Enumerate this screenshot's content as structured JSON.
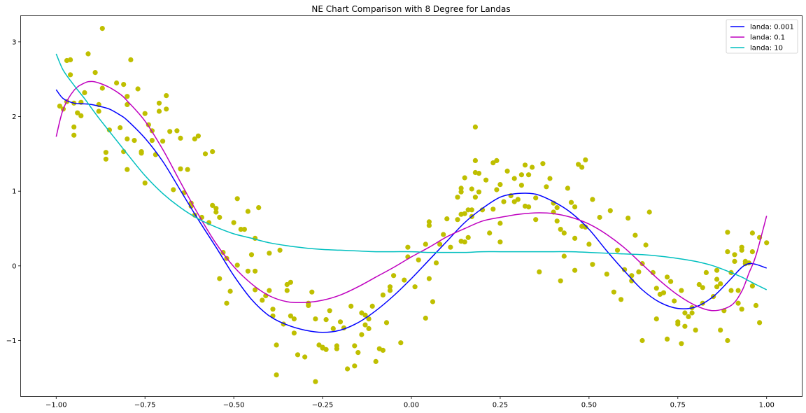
{
  "chart_data": {
    "type": "scatter",
    "title": "NE Chart Comparison with 8 Degree for Landas",
    "xlabel": "",
    "ylabel": "",
    "xlim": [
      -1.1,
      1.1
    ],
    "ylim": [
      -1.75,
      3.35
    ],
    "x_ticks": [
      -1.0,
      -0.75,
      -0.5,
      -0.25,
      0.0,
      0.25,
      0.5,
      0.75,
      1.0
    ],
    "x_tick_labels": [
      "−1.00",
      "−0.75",
      "−0.50",
      "−0.25",
      "0.00",
      "0.25",
      "0.50",
      "0.75",
      "1.00"
    ],
    "y_ticks": [
      -1,
      0,
      1,
      2,
      3
    ],
    "y_tick_labels": [
      "−1",
      "0",
      "1",
      "2",
      "3"
    ],
    "grid": false,
    "legend_position": "top-right",
    "scatter_color": "#bfbf00",
    "points": [
      [
        -0.99,
        2.14
      ],
      [
        -0.98,
        2.1
      ],
      [
        -0.97,
        2.75
      ],
      [
        -0.96,
        2.76
      ],
      [
        -0.96,
        2.56
      ],
      [
        -0.97,
        2.2
      ],
      [
        -0.95,
        1.86
      ],
      [
        -0.95,
        1.75
      ],
      [
        -0.95,
        2.18
      ],
      [
        -0.94,
        2.05
      ],
      [
        -0.93,
        2.01
      ],
      [
        -0.93,
        2.19
      ],
      [
        -0.92,
        2.32
      ],
      [
        -0.91,
        2.84
      ],
      [
        -0.89,
        2.59
      ],
      [
        -0.88,
        2.07
      ],
      [
        -0.88,
        2.16
      ],
      [
        -0.87,
        3.18
      ],
      [
        -0.87,
        2.38
      ],
      [
        -0.86,
        1.52
      ],
      [
        -0.86,
        1.43
      ],
      [
        -0.85,
        1.82
      ],
      [
        -0.83,
        2.45
      ],
      [
        -0.82,
        1.85
      ],
      [
        -0.81,
        1.53
      ],
      [
        -0.81,
        2.43
      ],
      [
        -0.8,
        2.27
      ],
      [
        -0.8,
        2.16
      ],
      [
        -0.8,
        1.7
      ],
      [
        -0.8,
        1.29
      ],
      [
        -0.79,
        2.76
      ],
      [
        -0.78,
        1.68
      ],
      [
        -0.77,
        2.37
      ],
      [
        -0.76,
        1.53
      ],
      [
        -0.76,
        1.51
      ],
      [
        -0.75,
        1.11
      ],
      [
        -0.75,
        2.04
      ],
      [
        -0.74,
        1.89
      ],
      [
        -0.73,
        1.81
      ],
      [
        -0.73,
        1.68
      ],
      [
        -0.72,
        1.49
      ],
      [
        -0.71,
        2.18
      ],
      [
        -0.71,
        2.07
      ],
      [
        -0.7,
        1.67
      ],
      [
        -0.69,
        2.28
      ],
      [
        -0.69,
        2.1
      ],
      [
        -0.68,
        1.8
      ],
      [
        -0.67,
        1.02
      ],
      [
        -0.66,
        1.81
      ],
      [
        -0.65,
        1.71
      ],
      [
        -0.65,
        1.3
      ],
      [
        -0.64,
        0.98
      ],
      [
        -0.63,
        1.29
      ],
      [
        -0.62,
        0.84
      ],
      [
        -0.62,
        0.8
      ],
      [
        -0.61,
        0.68
      ],
      [
        -0.61,
        1.7
      ],
      [
        -0.6,
        1.74
      ],
      [
        -0.59,
        0.65
      ],
      [
        -0.58,
        1.5
      ],
      [
        -0.57,
        0.58
      ],
      [
        -0.56,
        0.81
      ],
      [
        -0.56,
        1.53
      ],
      [
        -0.55,
        0.77
      ],
      [
        -0.55,
        0.72
      ],
      [
        -0.54,
        -0.17
      ],
      [
        -0.54,
        0.65
      ],
      [
        -0.53,
        0.18
      ],
      [
        -0.52,
        0.1
      ],
      [
        -0.52,
        -0.5
      ],
      [
        -0.51,
        -0.34
      ],
      [
        -0.5,
        0.58
      ],
      [
        -0.49,
        0.01
      ],
      [
        -0.49,
        0.9
      ],
      [
        -0.48,
        0.49
      ],
      [
        -0.47,
        0.49
      ],
      [
        -0.46,
        0.73
      ],
      [
        -0.46,
        -0.07
      ],
      [
        -0.45,
        0.15
      ],
      [
        -0.44,
        -0.07
      ],
      [
        -0.44,
        0.37
      ],
      [
        -0.44,
        -0.32
      ],
      [
        -0.43,
        0.78
      ],
      [
        -0.42,
        -0.46
      ],
      [
        -0.41,
        -0.4
      ],
      [
        -0.4,
        0.17
      ],
      [
        -0.4,
        -0.33
      ],
      [
        -0.39,
        -0.58
      ],
      [
        -0.39,
        -0.67
      ],
      [
        -0.38,
        -1.06
      ],
      [
        -0.38,
        -1.46
      ],
      [
        -0.37,
        0.21
      ],
      [
        -0.36,
        -0.78
      ],
      [
        -0.35,
        -0.25
      ],
      [
        -0.35,
        -0.33
      ],
      [
        -0.34,
        -0.22
      ],
      [
        -0.34,
        -0.67
      ],
      [
        -0.33,
        -0.71
      ],
      [
        -0.33,
        -0.9
      ],
      [
        -0.32,
        -1.19
      ],
      [
        -0.3,
        -1.22
      ],
      [
        -0.29,
        -0.53
      ],
      [
        -0.29,
        -0.5
      ],
      [
        -0.28,
        -0.35
      ],
      [
        -0.27,
        -1.55
      ],
      [
        -0.27,
        -0.71
      ],
      [
        -0.26,
        -1.06
      ],
      [
        -0.25,
        -1.1
      ],
      [
        -0.25,
        -1.09
      ],
      [
        -0.24,
        -0.72
      ],
      [
        -0.24,
        -1.12
      ],
      [
        -0.23,
        -0.6
      ],
      [
        -0.22,
        -0.84
      ],
      [
        -0.21,
        -1.11
      ],
      [
        -0.21,
        -1.07
      ],
      [
        -0.2,
        -0.75
      ],
      [
        -0.19,
        -0.83
      ],
      [
        -0.18,
        -1.38
      ],
      [
        -0.17,
        -0.54
      ],
      [
        -0.16,
        -1.34
      ],
      [
        -0.16,
        -1.07
      ],
      [
        -0.15,
        -1.16
      ],
      [
        -0.14,
        -0.92
      ],
      [
        -0.14,
        -0.63
      ],
      [
        -0.13,
        -0.66
      ],
      [
        -0.13,
        -0.79
      ],
      [
        -0.12,
        -0.84
      ],
      [
        -0.12,
        -0.71
      ],
      [
        -0.11,
        -0.54
      ],
      [
        -0.1,
        -1.28
      ],
      [
        -0.09,
        -1.11
      ],
      [
        -0.08,
        -1.13
      ],
      [
        -0.08,
        -0.39
      ],
      [
        -0.07,
        -0.76
      ],
      [
        -0.06,
        -0.28
      ],
      [
        -0.06,
        -0.33
      ],
      [
        -0.05,
        -0.13
      ],
      [
        -0.03,
        -1.03
      ],
      [
        -0.02,
        -0.19
      ],
      [
        -0.01,
        0.25
      ],
      [
        -0.01,
        0.12
      ],
      [
        0.01,
        -0.28
      ],
      [
        0.02,
        0.08
      ],
      [
        0.04,
        -0.7
      ],
      [
        0.04,
        0.29
      ],
      [
        0.05,
        0.54
      ],
      [
        0.05,
        0.59
      ],
      [
        0.05,
        -0.17
      ],
      [
        0.06,
        -0.48
      ],
      [
        0.07,
        0.04
      ],
      [
        0.08,
        0.29
      ],
      [
        0.09,
        0.42
      ],
      [
        0.1,
        0.63
      ],
      [
        0.11,
        0.25
      ],
      [
        0.13,
        0.62
      ],
      [
        0.13,
        0.92
      ],
      [
        0.14,
        0.99
      ],
      [
        0.14,
        1.04
      ],
      [
        0.14,
        0.69
      ],
      [
        0.14,
        0.33
      ],
      [
        0.15,
        1.18
      ],
      [
        0.15,
        0.7
      ],
      [
        0.15,
        0.32
      ],
      [
        0.16,
        0.38
      ],
      [
        0.16,
        0.75
      ],
      [
        0.17,
        0.66
      ],
      [
        0.17,
        1.03
      ],
      [
        0.17,
        0.75
      ],
      [
        0.18,
        1.86
      ],
      [
        0.18,
        1.41
      ],
      [
        0.18,
        1.25
      ],
      [
        0.18,
        0.92
      ],
      [
        0.19,
        0.99
      ],
      [
        0.19,
        1.24
      ],
      [
        0.2,
        0.75
      ],
      [
        0.21,
        1.15
      ],
      [
        0.22,
        0.44
      ],
      [
        0.23,
        0.76
      ],
      [
        0.23,
        1.38
      ],
      [
        0.24,
        1.41
      ],
      [
        0.24,
        1.02
      ],
      [
        0.25,
        1.09
      ],
      [
        0.25,
        0.32
      ],
      [
        0.25,
        0.57
      ],
      [
        0.26,
        0.86
      ],
      [
        0.27,
        1.27
      ],
      [
        0.28,
        0.94
      ],
      [
        0.29,
        1.17
      ],
      [
        0.29,
        0.86
      ],
      [
        0.3,
        0.89
      ],
      [
        0.31,
        1.22
      ],
      [
        0.31,
        1.08
      ],
      [
        0.32,
        0.8
      ],
      [
        0.32,
        1.35
      ],
      [
        0.33,
        1.22
      ],
      [
        0.33,
        0.79
      ],
      [
        0.34,
        1.32
      ],
      [
        0.35,
        0.91
      ],
      [
        0.35,
        0.62
      ],
      [
        0.36,
        -0.08
      ],
      [
        0.37,
        1.37
      ],
      [
        0.38,
        1.06
      ],
      [
        0.39,
        1.17
      ],
      [
        0.4,
        0.84
      ],
      [
        0.4,
        0.72
      ],
      [
        0.41,
        0.6
      ],
      [
        0.41,
        0.78
      ],
      [
        0.42,
        0.49
      ],
      [
        0.42,
        -0.2
      ],
      [
        0.43,
        0.44
      ],
      [
        0.43,
        0.13
      ],
      [
        0.44,
        1.04
      ],
      [
        0.45,
        0.85
      ],
      [
        0.46,
        -0.06
      ],
      [
        0.46,
        0.79
      ],
      [
        0.46,
        0.37
      ],
      [
        0.47,
        1.36
      ],
      [
        0.48,
        0.53
      ],
      [
        0.48,
        1.32
      ],
      [
        0.49,
        0.52
      ],
      [
        0.49,
        1.42
      ],
      [
        0.5,
        0.29
      ],
      [
        0.51,
        0.89
      ],
      [
        0.51,
        0.02
      ],
      [
        0.53,
        0.65
      ],
      [
        0.55,
        -0.11
      ],
      [
        0.56,
        0.74
      ],
      [
        0.57,
        -0.35
      ],
      [
        0.58,
        0.21
      ],
      [
        0.59,
        -0.45
      ],
      [
        0.6,
        -0.05
      ],
      [
        0.61,
        0.64
      ],
      [
        0.62,
        -0.13
      ],
      [
        0.62,
        -0.2
      ],
      [
        0.63,
        0.41
      ],
      [
        0.64,
        -0.08
      ],
      [
        0.65,
        0.03
      ],
      [
        0.65,
        -1.0
      ],
      [
        0.66,
        0.28
      ],
      [
        0.67,
        0.72
      ],
      [
        0.68,
        -0.09
      ],
      [
        0.69,
        -0.71
      ],
      [
        0.69,
        -0.3
      ],
      [
        0.7,
        -0.38
      ],
      [
        0.71,
        -0.36
      ],
      [
        0.72,
        -0.15
      ],
      [
        0.72,
        -0.98
      ],
      [
        0.73,
        -0.21
      ],
      [
        0.74,
        -0.47
      ],
      [
        0.75,
        -0.75
      ],
      [
        0.75,
        -0.78
      ],
      [
        0.76,
        -1.04
      ],
      [
        0.76,
        -0.33
      ],
      [
        0.77,
        -0.81
      ],
      [
        0.77,
        -0.63
      ],
      [
        0.78,
        -0.68
      ],
      [
        0.79,
        -0.63
      ],
      [
        0.79,
        -0.56
      ],
      [
        0.8,
        -0.86
      ],
      [
        0.81,
        -0.25
      ],
      [
        0.82,
        -0.5
      ],
      [
        0.82,
        -0.29
      ],
      [
        0.83,
        -0.09
      ],
      [
        0.85,
        -0.41
      ],
      [
        0.86,
        -0.06
      ],
      [
        0.86,
        -0.28
      ],
      [
        0.86,
        -0.18
      ],
      [
        0.87,
        -0.24
      ],
      [
        0.87,
        -0.86
      ],
      [
        0.88,
        -0.6
      ],
      [
        0.89,
        0.19
      ],
      [
        0.89,
        -1.0
      ],
      [
        0.89,
        0.45
      ],
      [
        0.9,
        -0.33
      ],
      [
        0.9,
        -0.09
      ],
      [
        0.91,
        0.15
      ],
      [
        0.91,
        0.06
      ],
      [
        0.92,
        -0.33
      ],
      [
        0.92,
        -0.5
      ],
      [
        0.93,
        0.25
      ],
      [
        0.93,
        0.21
      ],
      [
        0.93,
        -0.58
      ],
      [
        0.94,
        0.06
      ],
      [
        0.94,
        0.03
      ],
      [
        0.95,
        0.04
      ],
      [
        0.96,
        0.44
      ],
      [
        0.96,
        0.19
      ],
      [
        0.96,
        -0.27
      ],
      [
        0.97,
        -0.53
      ],
      [
        0.98,
        -0.76
      ],
      [
        0.98,
        0.38
      ],
      [
        1.0,
        0.31
      ]
    ],
    "series": [
      {
        "name": "landa: 0.001",
        "color": "#0000ff",
        "x": [
          -1.0,
          -0.98,
          -0.95,
          -0.92,
          -0.9,
          -0.88,
          -0.85,
          -0.82,
          -0.8,
          -0.75,
          -0.7,
          -0.65,
          -0.6,
          -0.55,
          -0.5,
          -0.45,
          -0.4,
          -0.35,
          -0.3,
          -0.25,
          -0.2,
          -0.15,
          -0.1,
          -0.05,
          0.0,
          0.05,
          0.1,
          0.15,
          0.2,
          0.25,
          0.3,
          0.35,
          0.4,
          0.45,
          0.5,
          0.55,
          0.6,
          0.65,
          0.7,
          0.75,
          0.8,
          0.85,
          0.9,
          0.93,
          0.95,
          0.97,
          1.0
        ],
        "y": [
          2.36,
          2.24,
          2.18,
          2.17,
          2.16,
          2.14,
          2.1,
          2.02,
          1.95,
          1.71,
          1.4,
          1.01,
          0.62,
          0.25,
          -0.13,
          -0.45,
          -0.67,
          -0.79,
          -0.86,
          -0.89,
          -0.86,
          -0.76,
          -0.6,
          -0.4,
          -0.17,
          0.08,
          0.33,
          0.58,
          0.77,
          0.92,
          0.97,
          0.96,
          0.86,
          0.71,
          0.49,
          0.2,
          -0.07,
          -0.32,
          -0.49,
          -0.57,
          -0.55,
          -0.41,
          -0.17,
          -0.02,
          0.03,
          0.02,
          -0.03
        ]
      },
      {
        "name": "landa: 0.1",
        "color": "#bf00bf",
        "x": [
          -1.0,
          -0.98,
          -0.95,
          -0.92,
          -0.9,
          -0.88,
          -0.85,
          -0.82,
          -0.8,
          -0.75,
          -0.7,
          -0.65,
          -0.6,
          -0.55,
          -0.5,
          -0.45,
          -0.4,
          -0.35,
          -0.3,
          -0.25,
          -0.2,
          -0.15,
          -0.1,
          -0.05,
          0.0,
          0.05,
          0.1,
          0.15,
          0.2,
          0.25,
          0.3,
          0.35,
          0.4,
          0.45,
          0.5,
          0.55,
          0.6,
          0.65,
          0.7,
          0.75,
          0.8,
          0.85,
          0.9,
          0.93,
          0.95,
          0.97,
          1.0
        ],
        "y": [
          1.73,
          2.1,
          2.35,
          2.45,
          2.47,
          2.45,
          2.39,
          2.3,
          2.21,
          1.94,
          1.56,
          1.12,
          0.69,
          0.3,
          -0.01,
          -0.24,
          -0.4,
          -0.48,
          -0.49,
          -0.46,
          -0.39,
          -0.28,
          -0.15,
          -0.02,
          0.12,
          0.25,
          0.39,
          0.5,
          0.6,
          0.65,
          0.69,
          0.71,
          0.7,
          0.65,
          0.56,
          0.42,
          0.24,
          0.02,
          -0.2,
          -0.39,
          -0.53,
          -0.6,
          -0.53,
          -0.34,
          -0.1,
          0.14,
          0.67
        ]
      },
      {
        "name": "landa: 10",
        "color": "#00bfbf",
        "x": [
          -1.0,
          -0.98,
          -0.95,
          -0.92,
          -0.9,
          -0.88,
          -0.85,
          -0.82,
          -0.8,
          -0.75,
          -0.7,
          -0.65,
          -0.6,
          -0.55,
          -0.5,
          -0.45,
          -0.4,
          -0.35,
          -0.3,
          -0.25,
          -0.2,
          -0.15,
          -0.1,
          -0.05,
          0.0,
          0.05,
          0.1,
          0.15,
          0.2,
          0.25,
          0.3,
          0.35,
          0.4,
          0.45,
          0.5,
          0.55,
          0.6,
          0.65,
          0.7,
          0.75,
          0.8,
          0.85,
          0.9,
          0.93,
          0.95,
          0.97,
          1.0
        ],
        "y": [
          2.84,
          2.62,
          2.42,
          2.24,
          2.11,
          1.98,
          1.8,
          1.62,
          1.5,
          1.21,
          0.97,
          0.78,
          0.63,
          0.52,
          0.43,
          0.37,
          0.31,
          0.27,
          0.24,
          0.22,
          0.21,
          0.2,
          0.19,
          0.19,
          0.19,
          0.18,
          0.18,
          0.18,
          0.19,
          0.19,
          0.19,
          0.19,
          0.19,
          0.19,
          0.18,
          0.17,
          0.16,
          0.15,
          0.13,
          0.1,
          0.06,
          0.0,
          -0.09,
          -0.15,
          -0.2,
          -0.25,
          -0.32
        ]
      }
    ]
  }
}
